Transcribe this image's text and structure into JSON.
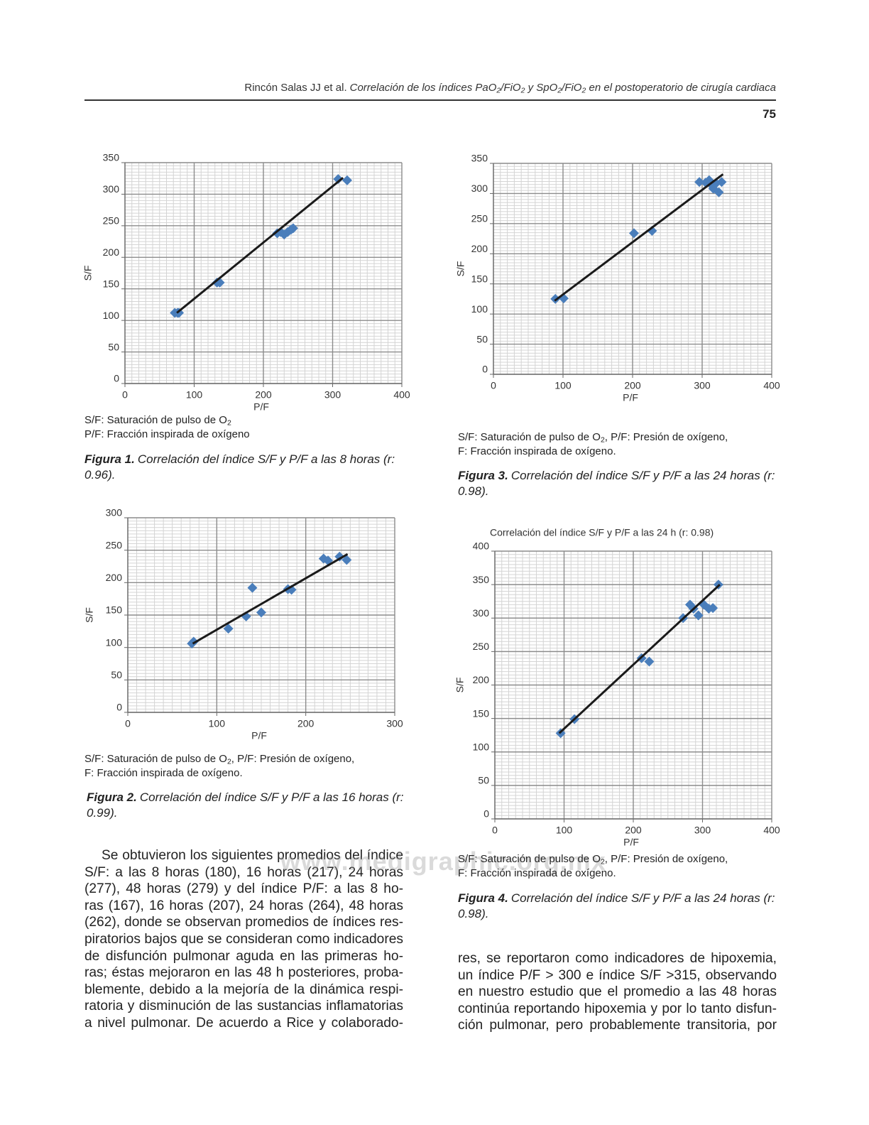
{
  "header": {
    "author": "Rincón Salas JJ et al.",
    "title_parts": [
      "Correlación de los índices PaO",
      "2",
      "/FiO",
      "2",
      " y SpO",
      "2",
      "/FiO",
      "2",
      " en el postoperatorio de cirugía cardiaca"
    ],
    "page_number": "75"
  },
  "chart_data": [
    {
      "type": "scatter",
      "xlabel": "P/F",
      "ylabel": "S/F",
      "xlim": [
        0,
        400
      ],
      "ylim": [
        0,
        350
      ],
      "xticks": [
        0,
        100,
        200,
        300,
        400
      ],
      "yticks": [
        0,
        50,
        100,
        150,
        200,
        250,
        300,
        350
      ],
      "grid": true,
      "color": "#4a7ebb",
      "x": [
        72,
        76,
        78,
        133,
        137,
        220,
        225,
        230,
        235,
        240,
        243,
        308,
        321
      ],
      "values": [
        112,
        112,
        112,
        160,
        160,
        238,
        240,
        236,
        240,
        244,
        246,
        324,
        322
      ],
      "trendline": {
        "x": [
          75,
          315
        ],
        "values": [
          112,
          326
        ],
        "color": "#1a1a1a"
      },
      "notes": [
        [
          "S/F: Saturación de pulso de O",
          "2"
        ],
        [
          "P/F: Fracción inspirada de oxígeno"
        ]
      ],
      "caption_label": "Figura 1.",
      "caption": "Correlación del índice S/F y P/F a las 8 horas (r: 0.96)."
    },
    {
      "type": "scatter",
      "xlabel": "P/F",
      "ylabel": "S/F",
      "xlim": [
        0,
        300
      ],
      "ylim": [
        0,
        300
      ],
      "xticks": [
        0,
        100,
        200,
        300
      ],
      "yticks": [
        0,
        50,
        100,
        150,
        200,
        250,
        300
      ],
      "grid": true,
      "color": "#4a7ebb",
      "x": [
        72,
        74,
        113,
        133,
        140,
        150,
        180,
        184,
        220,
        225,
        238,
        246
      ],
      "values": [
        106,
        109,
        129,
        148,
        192,
        154,
        190,
        189,
        237,
        234,
        240,
        235
      ],
      "trendline": {
        "x": [
          73,
          247
        ],
        "values": [
          106,
          244
        ],
        "color": "#1a1a1a"
      },
      "notes": [
        [
          "S/F: Saturación de pulso de O",
          "2",
          ", P/F: Presión de oxígeno,"
        ],
        [
          "F: Fracción inspirada de oxígeno."
        ]
      ],
      "caption_label": "Figura 2.",
      "caption": "Correlación del índice S/F y P/F a las 16 horas (r: 0.99)."
    },
    {
      "type": "scatter",
      "xlabel": "P/F",
      "ylabel": "S/F",
      "xlim": [
        0,
        400
      ],
      "ylim": [
        0,
        350
      ],
      "xticks": [
        0,
        100,
        200,
        300,
        400
      ],
      "yticks": [
        0,
        50,
        100,
        150,
        200,
        250,
        300,
        350
      ],
      "grid": true,
      "color": "#4a7ebb",
      "x": [
        89,
        101,
        202,
        228,
        296,
        305,
        310,
        313,
        316,
        320,
        324,
        328
      ],
      "values": [
        125,
        126,
        234,
        238,
        319,
        318,
        322,
        315,
        308,
        317,
        302,
        319
      ],
      "trendline": {
        "x": [
          88,
          330
        ],
        "values": [
          122,
          332
        ],
        "color": "#1a1a1a"
      },
      "notes": [
        [
          "S/F: Saturación de pulso de O",
          "2",
          ", P/F: Presión de oxígeno,"
        ],
        [
          "F: Fracción inspirada de oxígeno."
        ]
      ],
      "caption_label": "Figura 3.",
      "caption": "Correlación del índice S/F y P/F a las 24 horas (r: 0.98)."
    },
    {
      "type": "scatter",
      "title": "Correlación del índice S/F y P/F a las 24 h (r: 0.98)",
      "xlabel": "P/F",
      "ylabel": "S/F",
      "xlim": [
        0,
        400
      ],
      "ylim": [
        0,
        400
      ],
      "xticks": [
        0,
        100,
        200,
        300,
        400
      ],
      "yticks": [
        0,
        50,
        100,
        150,
        200,
        250,
        300,
        350,
        400
      ],
      "grid": true,
      "color": "#4a7ebb",
      "x": [
        95,
        115,
        212,
        223,
        272,
        282,
        287,
        294,
        302,
        309,
        315,
        323
      ],
      "values": [
        128,
        149,
        240,
        235,
        300,
        320,
        314,
        304,
        320,
        314,
        315,
        350
      ],
      "trendline": {
        "x": [
          93,
          325
        ],
        "values": [
          128,
          350
        ],
        "color": "#1a1a1a"
      },
      "notes": [
        [
          "S/F: Saturación de pulso de O",
          "2",
          ", P/F: Presión de oxígeno,"
        ],
        [
          "F: Fracción inspirada de oxígeno."
        ]
      ],
      "caption_label": "Figura 4.",
      "caption": "Correlación del índice S/F y P/F a las 24 horas (r: 0.98)."
    }
  ],
  "body": {
    "left_lines": [
      "Se obtuvieron los siguientes promedios del índice",
      "S/F: a las 8 horas (180), 16 horas (217), 24 horas",
      "(277), 48 horas (279) y del índice P/F: a las 8 ho-",
      "ras (167), 16 horas (207), 24 horas (264), 48 horas",
      "(262), donde se observan promedios de índices res-",
      "piratorios bajos que se consideran como indicadores",
      "de disfunción pulmonar aguda en las primeras ho-",
      "ras; éstas mejoraron en las 48 h posteriores, proba-",
      "blemente, debido a la mejoría de la dinámica respi-",
      "ratoria y disminución de las sustancias inflamatorias",
      "a nivel pulmonar. De acuerdo a Rice y colaborado-"
    ],
    "right_lines": [
      "res, se reportaron como indicadores de hipoxemia,",
      "un índice P/F > 300 e índice S/F >315, observando",
      "en nuestro estudio que el promedio a las 48 horas",
      "continúa reportando hipoxemia y por lo tanto disfun-",
      "ción pulmonar, pero probablemente transitoria, por"
    ]
  },
  "watermark": "www.medigraphic.org.mx"
}
